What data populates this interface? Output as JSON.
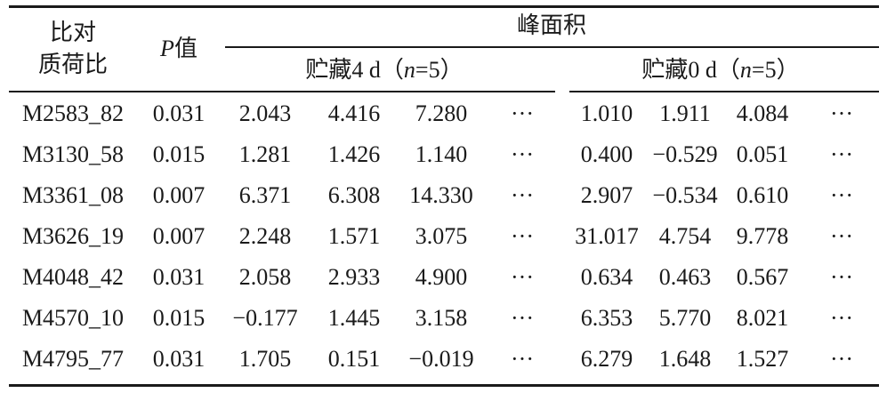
{
  "header": {
    "col_ratio_line1": "比对",
    "col_ratio_line2": "质荷比",
    "col_p_italic": "P",
    "col_p_rest": "值",
    "group_title": "峰面积",
    "sub_a_prefix": "贮藏4 d（",
    "sub_a_n": "n",
    "sub_a_suffix": "=5）",
    "sub_b_prefix": "贮藏0 d（",
    "sub_b_n": "n",
    "sub_b_suffix": "=5）"
  },
  "rows": [
    {
      "id": "M2583_82",
      "p": "0.031",
      "a": [
        "2.043",
        "4.416",
        "7.280",
        "···"
      ],
      "b": [
        "1.010",
        "1.911",
        "4.084",
        "···"
      ]
    },
    {
      "id": "M3130_58",
      "p": "0.015",
      "a": [
        "1.281",
        "1.426",
        "1.140",
        "···"
      ],
      "b": [
        "0.400",
        "−0.529",
        "0.051",
        "···"
      ]
    },
    {
      "id": "M3361_08",
      "p": "0.007",
      "a": [
        "6.371",
        "6.308",
        "14.330",
        "···"
      ],
      "b": [
        "2.907",
        "−0.534",
        "0.610",
        "···"
      ]
    },
    {
      "id": "M3626_19",
      "p": "0.007",
      "a": [
        "2.248",
        "1.571",
        "3.075",
        "···"
      ],
      "b": [
        "31.017",
        "4.754",
        "9.778",
        "···"
      ]
    },
    {
      "id": "M4048_42",
      "p": "0.031",
      "a": [
        "2.058",
        "2.933",
        "4.900",
        "···"
      ],
      "b": [
        "0.634",
        "0.463",
        "0.567",
        "···"
      ]
    },
    {
      "id": "M4570_10",
      "p": "0.015",
      "a": [
        "−0.177",
        "1.445",
        "3.158",
        "···"
      ],
      "b": [
        "6.353",
        "5.770",
        "8.021",
        "···"
      ]
    },
    {
      "id": "M4795_77",
      "p": "0.031",
      "a": [
        "1.705",
        "0.151",
        "−0.019",
        "···"
      ],
      "b": [
        "6.279",
        "1.648",
        "1.527",
        "···"
      ]
    }
  ]
}
